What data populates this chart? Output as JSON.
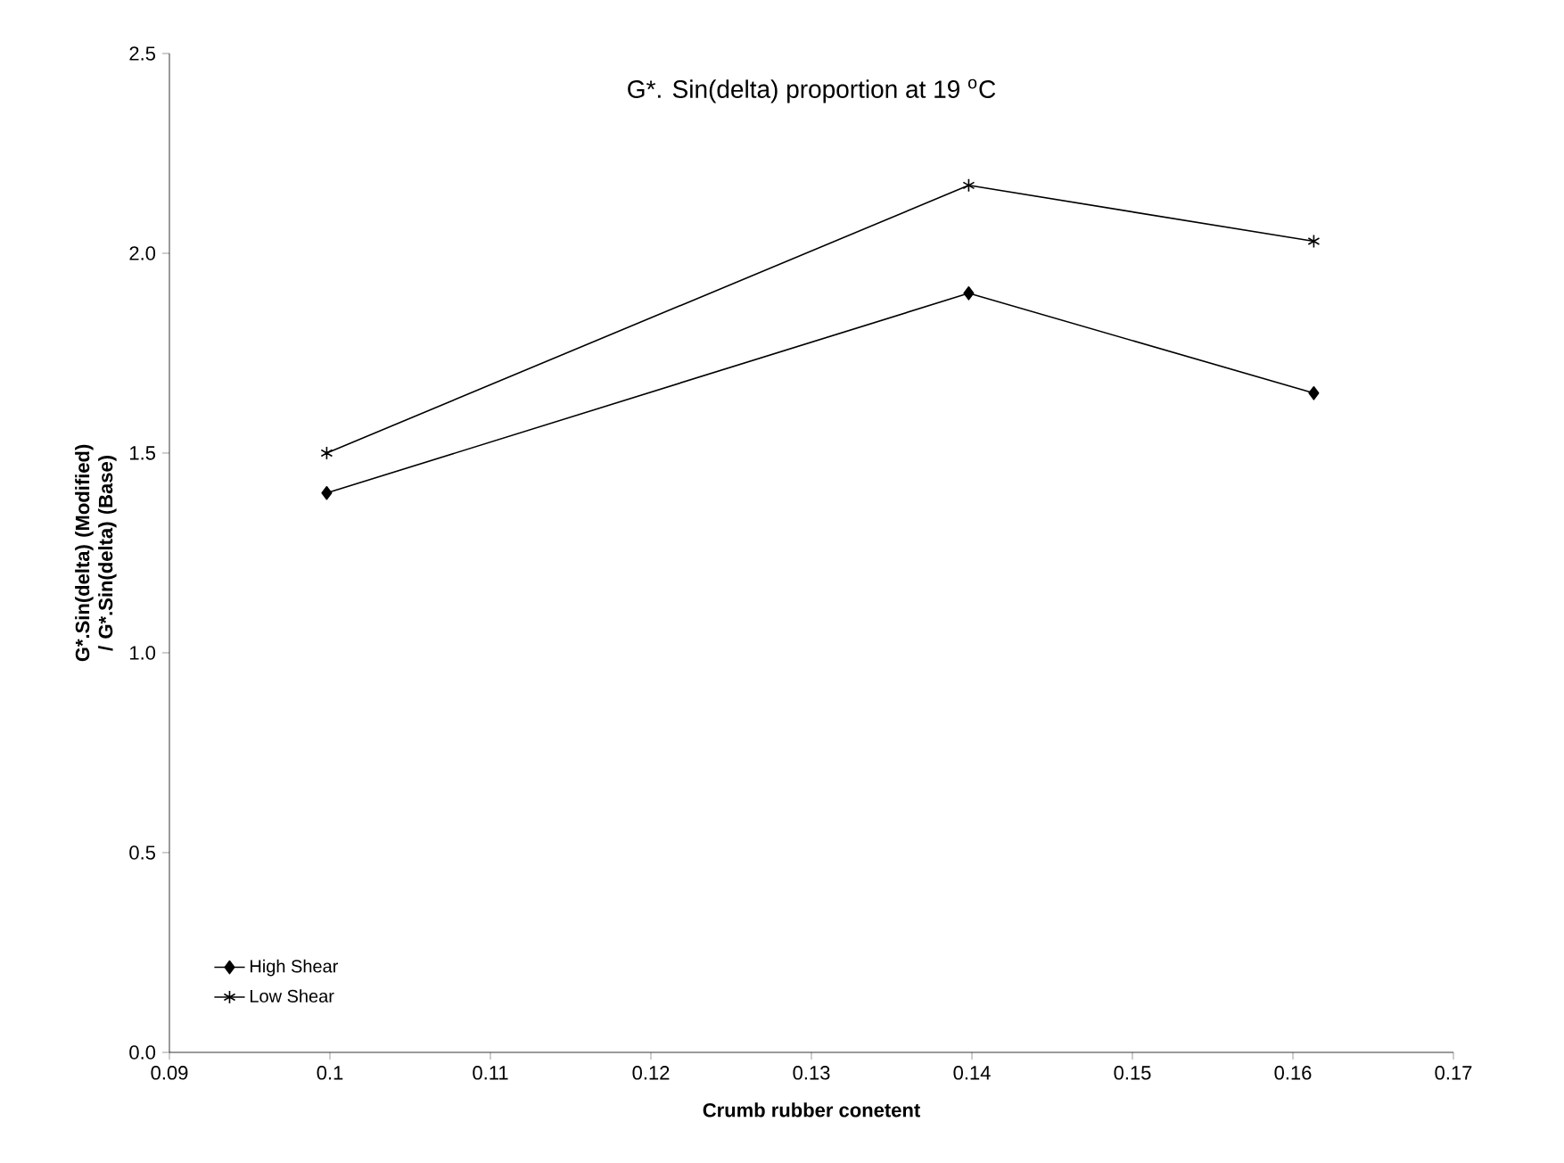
{
  "chart_data": {
    "type": "line",
    "title": "G*. Sin(delta) proportion at 19 $^{o}$C",
    "xlabel": "Crumb rubber conetent",
    "ylabel": "G*.Sin(delta) (Modified) / G*.Sin(delta) (Base)",
    "x": [
      0.0998,
      0.1398,
      0.1613
    ],
    "series": [
      {
        "name": "High Shear",
        "color": "#000000",
        "marker": "diamond",
        "values": [
          1.4,
          1.9,
          1.65
        ]
      },
      {
        "name": "Low Shear",
        "color": "#000000",
        "marker": "cross",
        "values": [
          1.5,
          2.17,
          2.03
        ]
      }
    ],
    "xlim": [
      0.09,
      0.17
    ],
    "xticks": [
      0.09,
      0.1,
      0.11,
      0.12,
      0.13,
      0.14,
      0.15,
      0.16,
      0.17
    ],
    "ylim": [
      0,
      2.5
    ],
    "yticks": [
      {
        "value": 0,
        "label": "0.0"
      },
      {
        "value": 0.5,
        "label": "0.5"
      },
      {
        "value": 1,
        "label": "1.0"
      },
      {
        "value": 1.5,
        "label": "1.5"
      },
      {
        "value": 2,
        "label": "2.0"
      },
      {
        "value": 2.5,
        "label": "2.5"
      }
    ],
    "grid": false,
    "legend": "bottom left",
    "line_style": "solid"
  }
}
